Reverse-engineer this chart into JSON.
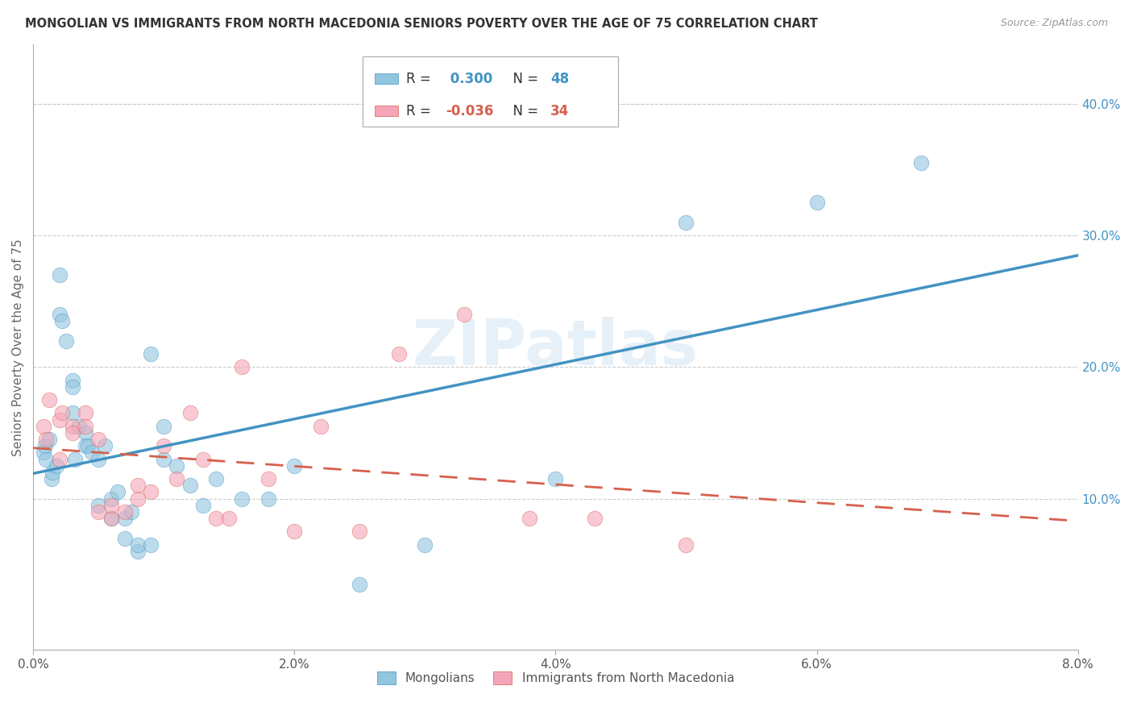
{
  "title": "MONGOLIAN VS IMMIGRANTS FROM NORTH MACEDONIA SENIORS POVERTY OVER THE AGE OF 75 CORRELATION CHART",
  "source": "Source: ZipAtlas.com",
  "ylabel": "Seniors Poverty Over the Age of 75",
  "xlabel_ticks": [
    "0.0%",
    "2.0%",
    "4.0%",
    "6.0%",
    "8.0%"
  ],
  "xlabel_vals": [
    0.0,
    0.02,
    0.04,
    0.06,
    0.08
  ],
  "ylabel_ticks_right": [
    "10.0%",
    "20.0%",
    "30.0%",
    "40.0%"
  ],
  "ylabel_vals": [
    0.1,
    0.2,
    0.3,
    0.4
  ],
  "xlim": [
    0.0,
    0.08
  ],
  "ylim": [
    -0.015,
    0.445
  ],
  "mongolian_R": 0.3,
  "mongolian_N": 48,
  "macedonia_R": -0.036,
  "macedonia_N": 34,
  "blue_color": "#92c5de",
  "pink_color": "#f4a6b8",
  "blue_line_color": "#4393c3",
  "pink_line_color": "#d6604d",
  "legend_label1": "Mongolians",
  "legend_label2": "Immigrants from North Macedonia",
  "watermark": "ZIPatlas",
  "mongolian_x": [
    0.0008,
    0.0009,
    0.001,
    0.0012,
    0.0014,
    0.0015,
    0.0018,
    0.002,
    0.002,
    0.0022,
    0.0025,
    0.003,
    0.003,
    0.003,
    0.0032,
    0.0035,
    0.004,
    0.004,
    0.0042,
    0.0045,
    0.005,
    0.005,
    0.0055,
    0.006,
    0.006,
    0.0065,
    0.007,
    0.007,
    0.0075,
    0.008,
    0.008,
    0.009,
    0.009,
    0.01,
    0.01,
    0.011,
    0.012,
    0.013,
    0.014,
    0.016,
    0.018,
    0.02,
    0.025,
    0.03,
    0.04,
    0.05,
    0.06,
    0.068
  ],
  "mongolian_y": [
    0.135,
    0.14,
    0.13,
    0.145,
    0.115,
    0.12,
    0.125,
    0.27,
    0.24,
    0.235,
    0.22,
    0.19,
    0.185,
    0.165,
    0.13,
    0.155,
    0.15,
    0.14,
    0.14,
    0.135,
    0.095,
    0.13,
    0.14,
    0.085,
    0.1,
    0.105,
    0.085,
    0.07,
    0.09,
    0.06,
    0.065,
    0.065,
    0.21,
    0.13,
    0.155,
    0.125,
    0.11,
    0.095,
    0.115,
    0.1,
    0.1,
    0.125,
    0.035,
    0.065,
    0.115,
    0.31,
    0.325,
    0.355
  ],
  "macedonia_x": [
    0.0008,
    0.001,
    0.0012,
    0.002,
    0.002,
    0.0022,
    0.003,
    0.003,
    0.004,
    0.004,
    0.005,
    0.005,
    0.006,
    0.006,
    0.007,
    0.008,
    0.008,
    0.009,
    0.01,
    0.011,
    0.012,
    0.013,
    0.014,
    0.015,
    0.016,
    0.018,
    0.02,
    0.022,
    0.025,
    0.028,
    0.033,
    0.038,
    0.043,
    0.05
  ],
  "macedonia_y": [
    0.155,
    0.145,
    0.175,
    0.16,
    0.13,
    0.165,
    0.155,
    0.15,
    0.165,
    0.155,
    0.145,
    0.09,
    0.085,
    0.095,
    0.09,
    0.11,
    0.1,
    0.105,
    0.14,
    0.115,
    0.165,
    0.13,
    0.085,
    0.085,
    0.2,
    0.115,
    0.075,
    0.155,
    0.075,
    0.21,
    0.24,
    0.085,
    0.085,
    0.065
  ]
}
